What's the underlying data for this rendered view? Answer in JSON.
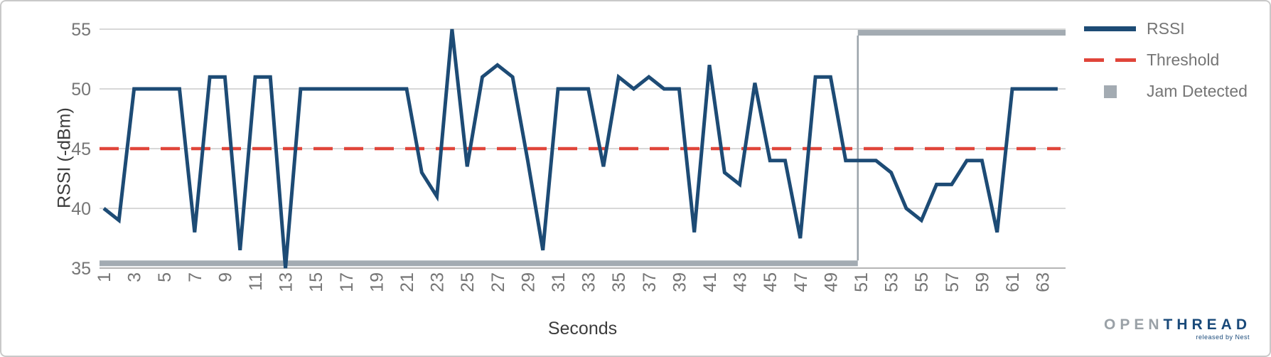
{
  "chart_data": {
    "type": "line",
    "title": "",
    "xlabel": "Seconds",
    "ylabel": "RSSI (-dBm)",
    "ylim": [
      35,
      55
    ],
    "yticks": [
      35,
      40,
      45,
      50,
      55
    ],
    "xticks": [
      1,
      3,
      5,
      7,
      9,
      11,
      13,
      15,
      17,
      19,
      21,
      23,
      25,
      27,
      29,
      31,
      33,
      35,
      37,
      39,
      41,
      43,
      45,
      47,
      49,
      51,
      53,
      55,
      57,
      59,
      61,
      63
    ],
    "grid": true,
    "legend_position": "right",
    "series": [
      {
        "name": "RSSI",
        "type": "line",
        "x_start": 1,
        "values": [
          40,
          39,
          50,
          50,
          50,
          50,
          38,
          51,
          51,
          36.5,
          51,
          51,
          35,
          50,
          50,
          50,
          50,
          50,
          50,
          50,
          50,
          43,
          41,
          55,
          43.5,
          51,
          52,
          51,
          44,
          36.5,
          50,
          50,
          50,
          43.5,
          51,
          50,
          51,
          50,
          50,
          38,
          52,
          43,
          42,
          50.5,
          44,
          44,
          37.5,
          51,
          51,
          44,
          44,
          44,
          43,
          40,
          39,
          42,
          42,
          44,
          44,
          38,
          50,
          50,
          50,
          50
        ]
      },
      {
        "name": "Threshold",
        "type": "horizontal-dashed-line",
        "value": 45
      },
      {
        "name": "Jam Detected",
        "type": "step-band",
        "low_value": 35.4,
        "high_value": 54.7,
        "step_x": 50.8,
        "x_span": [
          0.72,
          64.55
        ]
      }
    ],
    "legend": {
      "entries": [
        {
          "label": "RSSI",
          "swatch": "line"
        },
        {
          "label": "Threshold",
          "swatch": "dashed-line"
        },
        {
          "label": "Jam Detected",
          "swatch": "square"
        }
      ]
    },
    "colors": {
      "rssi": "#1d4b75",
      "threshold": "#e0453a",
      "jam": "#a3abb2",
      "jam_connector": "#9aa3aa",
      "grid": "#cccccc",
      "axis_line": "#b5b5b5",
      "tick_text": "#757575",
      "title_text": "#3c3c3c"
    }
  },
  "branding": {
    "logo_primary": "OPEN",
    "logo_secondary": "THREAD",
    "logo_primary_color": "#9aa1a7",
    "logo_secondary_color": "#1a4a7a",
    "tagline": "released by Nest"
  }
}
